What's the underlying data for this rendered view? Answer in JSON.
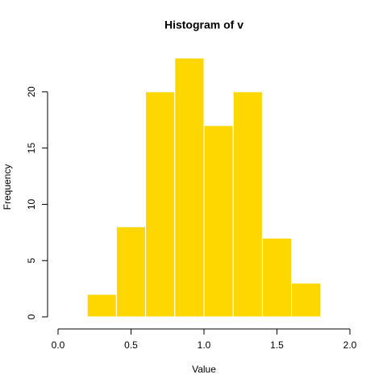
{
  "chart_data": {
    "type": "histogram",
    "title": "Histogram of v",
    "xlabel": "Value",
    "ylabel": "Frequency",
    "bins": [
      0.2,
      0.4,
      0.6,
      0.8,
      1.0,
      1.2,
      1.4,
      1.6,
      1.8
    ],
    "counts": [
      2,
      8,
      20,
      23,
      17,
      20,
      7,
      3
    ],
    "color": "#ffd700",
    "edgecolor": "#ffffff",
    "xlim": [
      0,
      2
    ],
    "xticks": [
      {
        "value": 0,
        "label": "0.0"
      },
      0.5,
      {
        "value": 1,
        "label": "1.0"
      },
      1.5,
      {
        "value": 2,
        "label": "2.0"
      }
    ],
    "ylim": [
      0,
      23
    ],
    "yticks": [
      0,
      5,
      10,
      15,
      20
    ]
  }
}
